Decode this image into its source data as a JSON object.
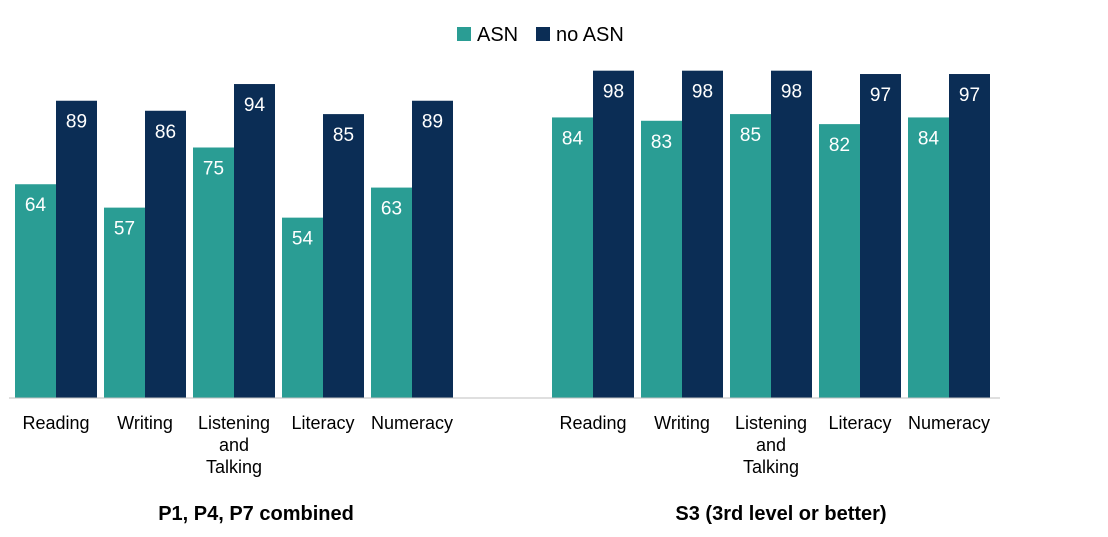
{
  "chart_data": [
    {
      "type": "bar",
      "group_label": "P1, P4, P7 combined",
      "categories": [
        [
          "Reading"
        ],
        [
          "Writing"
        ],
        [
          "Listening",
          "and",
          "Talking"
        ],
        [
          "Literacy"
        ],
        [
          "Numeracy"
        ]
      ],
      "series": [
        {
          "name": "ASN",
          "values": [
            64,
            57,
            75,
            54,
            63
          ]
        },
        {
          "name": "no ASN",
          "values": [
            89,
            86,
            94,
            85,
            89
          ]
        }
      ],
      "ylim": [
        0,
        100
      ],
      "grid": false
    },
    {
      "type": "bar",
      "group_label": "S3 (3rd level or better)",
      "categories": [
        [
          "Reading"
        ],
        [
          "Writing"
        ],
        [
          "Listening",
          "and",
          "Talking"
        ],
        [
          "Literacy"
        ],
        [
          "Numeracy"
        ]
      ],
      "series": [
        {
          "name": "ASN",
          "values": [
            84,
            83,
            85,
            82,
            84
          ]
        },
        {
          "name": "no ASN",
          "values": [
            98,
            98,
            98,
            97,
            97
          ]
        }
      ],
      "ylim": [
        0,
        100
      ],
      "grid": false
    }
  ],
  "legend": {
    "position": "top-center",
    "items": [
      {
        "label": "ASN",
        "color": "#2a9d94"
      },
      {
        "label": "no ASN",
        "color": "#0b2d55"
      }
    ]
  },
  "colors": {
    "asn": "#2a9d94",
    "no_asn": "#0b2d55",
    "axis": "#bfbfbf"
  }
}
